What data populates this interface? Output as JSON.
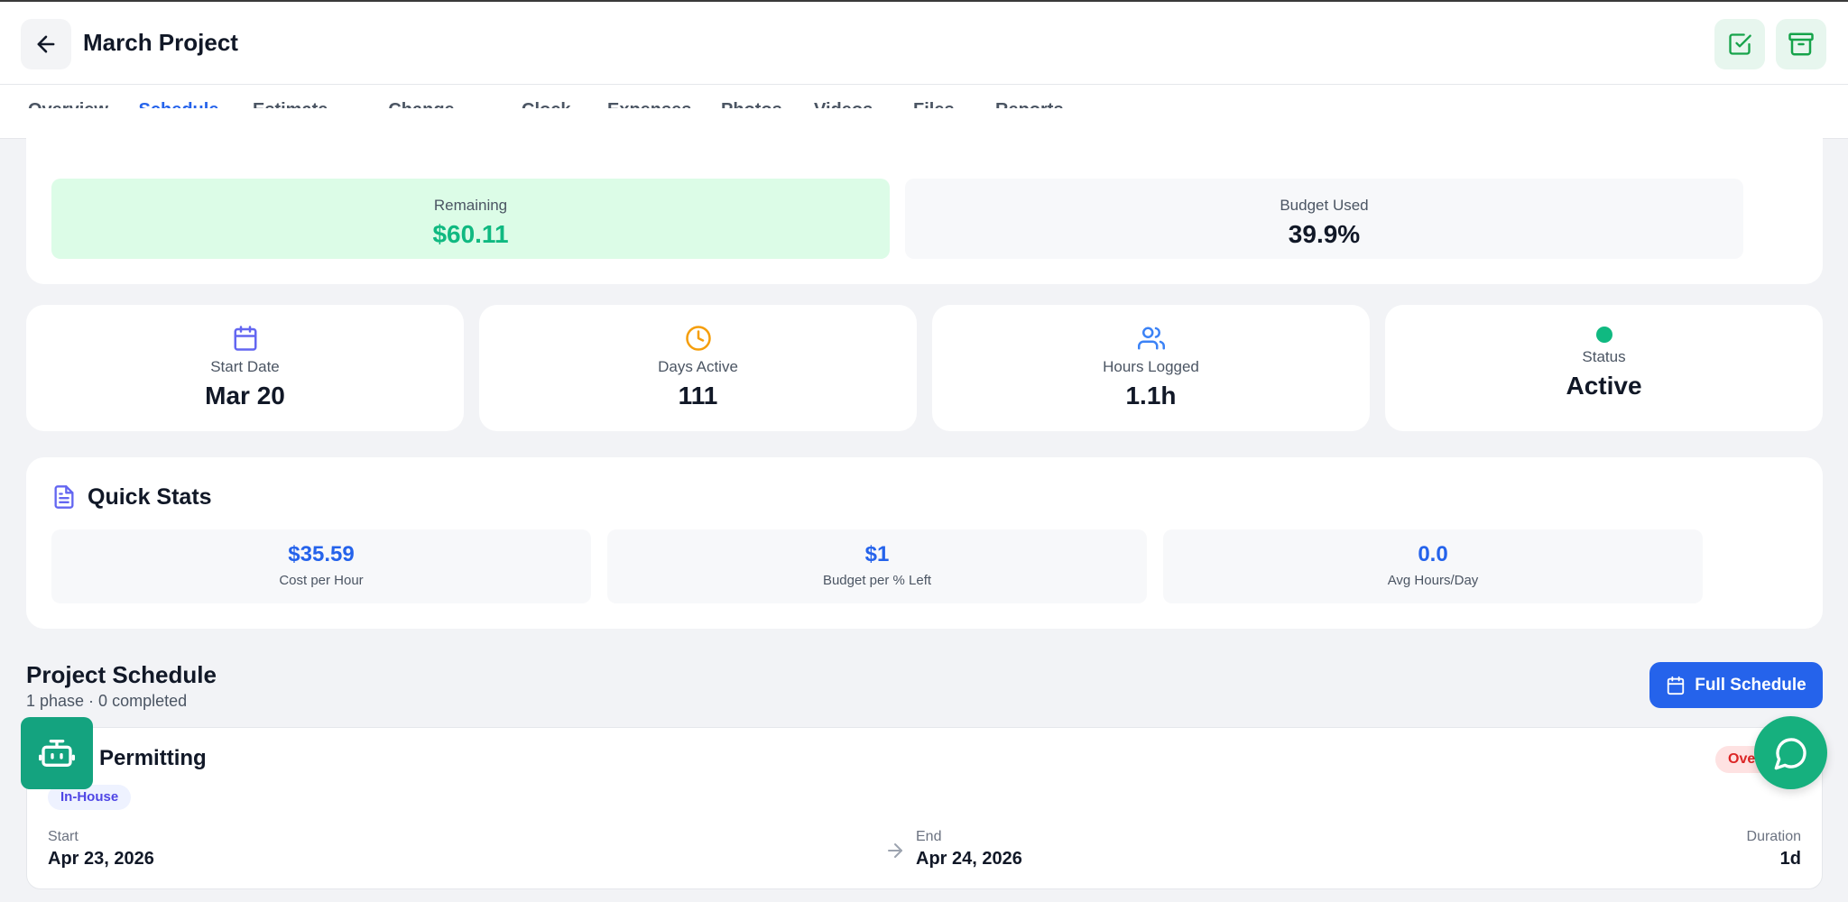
{
  "header": {
    "title": "March Project",
    "back_icon": "arrow-left-icon",
    "actions": [
      {
        "name": "checkbox-icon",
        "color": "#16a34a"
      },
      {
        "name": "archive-icon",
        "color": "#16a34a"
      }
    ]
  },
  "tabs": [
    {
      "label": "Overview",
      "active": false
    },
    {
      "label": "Schedule",
      "active": true
    },
    {
      "label": "Estimate",
      "active": false
    },
    {
      "label": "Change Orders",
      "active": false
    },
    {
      "label": "Clock",
      "active": false
    },
    {
      "label": "Expenses",
      "active": false
    },
    {
      "label": "Photos",
      "active": false
    },
    {
      "label": "Videos",
      "active": false
    },
    {
      "label": "Files",
      "active": false
    },
    {
      "label": "Reports",
      "active": false
    }
  ],
  "budget": {
    "remaining_label": "Remaining",
    "remaining_value": "$60.11",
    "used_label": "Budget Used",
    "used_value": "39.9%"
  },
  "stats": [
    {
      "icon": "calendar-icon",
      "label": "Start Date",
      "value": "Mar 20",
      "color": "#6366f1"
    },
    {
      "icon": "clock-icon",
      "label": "Days Active",
      "value": "111",
      "color": "#f59e0b"
    },
    {
      "icon": "users-icon",
      "label": "Hours Logged",
      "value": "1.1h",
      "color": "#3b82f6"
    },
    {
      "icon": "status-dot-icon",
      "label": "Status",
      "value": "Active",
      "color": "#10b981"
    }
  ],
  "quick_stats": {
    "title": "Quick Stats",
    "items": [
      {
        "value": "$35.59",
        "label": "Cost per Hour"
      },
      {
        "value": "$1",
        "label": "Budget per % Left"
      },
      {
        "value": "0.0",
        "label": "Avg Hours/Day"
      }
    ]
  },
  "schedule": {
    "title": "Project Schedule",
    "subtitle": "1 phase · 0 completed",
    "full_button": "Full Schedule",
    "phase": {
      "name": "Permitting",
      "tag": "In-House",
      "badge": "Overdue",
      "start_label": "Start",
      "start_value": "Apr 23, 2026",
      "end_label": "End",
      "end_value": "Apr 24, 2026",
      "duration_label": "Duration",
      "duration_value": "1d"
    }
  },
  "colors": {
    "accent": "#2563eb",
    "success": "#10b981",
    "remaining_bg": "#dcfce7",
    "remaining_text": "#10b981"
  }
}
